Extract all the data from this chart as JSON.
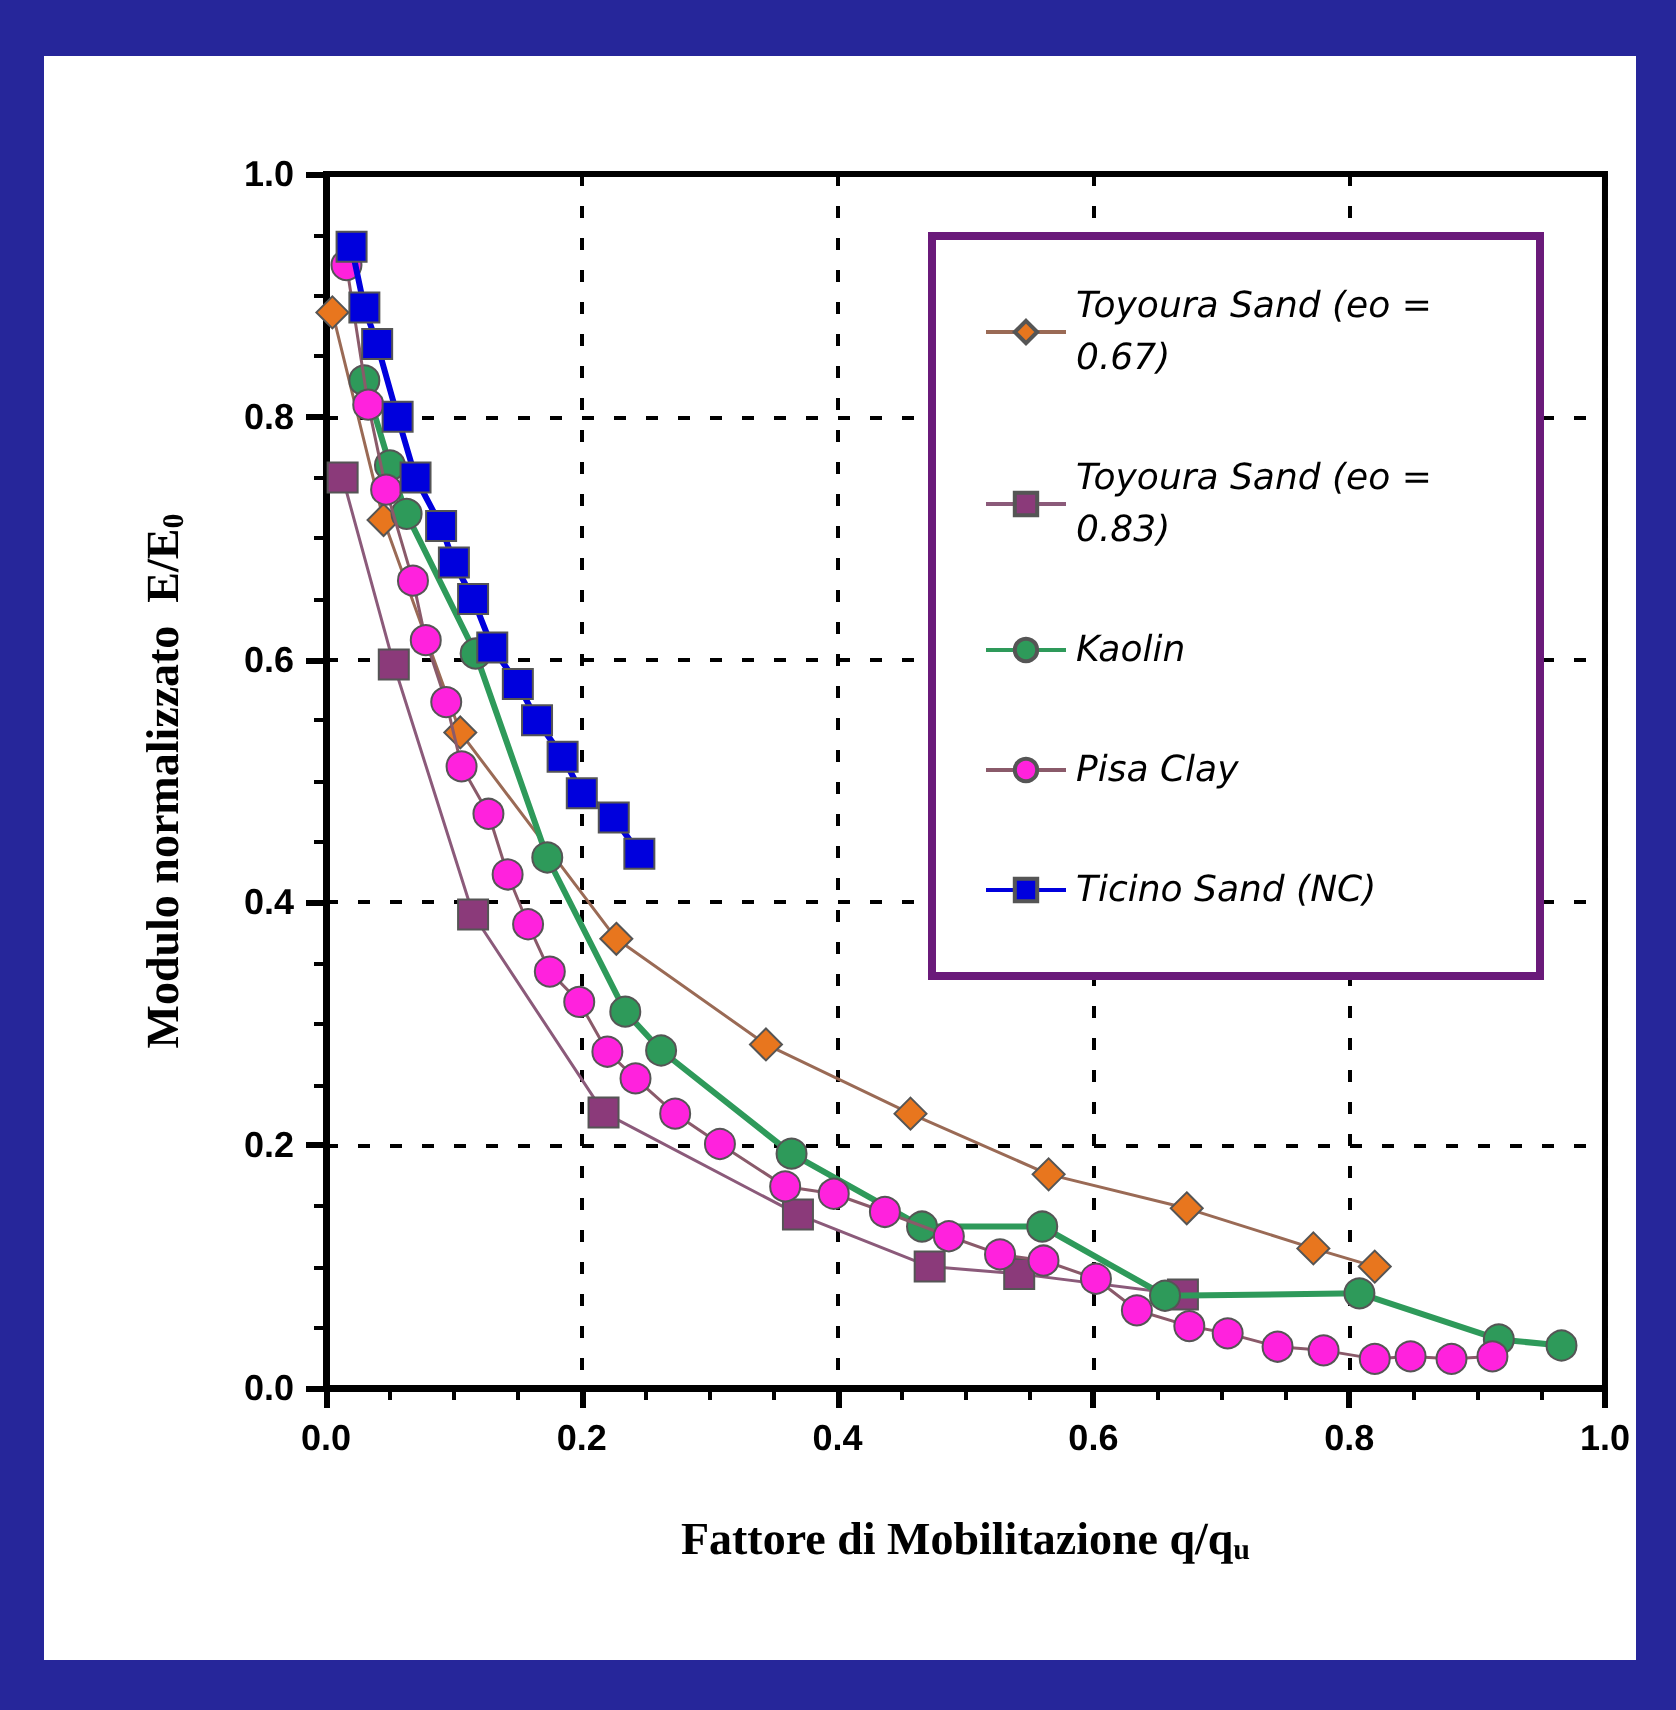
{
  "chart_data": {
    "type": "line",
    "xlabel": "Fattore di Mobilitazione q/q$_{u}$",
    "ylabel": "Modulo normalizzato  E/E$_{0}$",
    "xlim": [
      0,
      1
    ],
    "xticks": [
      {
        "value": 0,
        "label": "0.0"
      },
      0.2,
      0.4,
      0.6,
      0.8,
      {
        "value": 1,
        "label": "1.0"
      }
    ],
    "ylim": [
      0,
      1
    ],
    "yticks": [
      {
        "value": 0,
        "label": "0.0"
      },
      0.2,
      0.4,
      0.6,
      0.8,
      {
        "value": 1,
        "label": "1.0"
      }
    ],
    "grid": true,
    "legend": "top right",
    "series": [
      {
        "name": "Toyoura Sand (eo = 0.67)",
        "color": "#e8761e",
        "marker": "diamond",
        "x": [
          0.005,
          0.045,
          0.105,
          0.227,
          0.344,
          0.457,
          0.565,
          0.673,
          0.772,
          0.82
        ],
        "values": [
          0.886,
          0.715,
          0.54,
          0.37,
          0.283,
          0.226,
          0.176,
          0.148,
          0.115,
          0.1
        ]
      },
      {
        "name": "Toyoura Sand (eo = 0.83)",
        "color": "#8b3a7a",
        "marker": "square",
        "x": [
          0.013,
          0.053,
          0.115,
          0.217,
          0.369,
          0.472,
          0.542,
          0.67
        ],
        "values": [
          0.75,
          0.596,
          0.39,
          0.227,
          0.143,
          0.1,
          0.094,
          0.077
        ]
      },
      {
        "name": "Kaolin",
        "color": "#2e9a5a",
        "marker": "circle",
        "x": [
          0.03,
          0.05,
          0.063,
          0.117,
          0.173,
          0.234,
          0.262,
          0.364,
          0.466,
          0.56,
          0.656,
          0.808,
          0.917,
          0.966
        ],
        "values": [
          0.83,
          0.76,
          0.72,
          0.605,
          0.437,
          0.31,
          0.278,
          0.193,
          0.133,
          0.133,
          0.076,
          0.078,
          0.04,
          0.035
        ]
      },
      {
        "name": "Pisa Clay",
        "color": "#ff22dd",
        "marker": "circle",
        "x": [
          0.016,
          0.033,
          0.047,
          0.068,
          0.078,
          0.094,
          0.106,
          0.127,
          0.142,
          0.158,
          0.175,
          0.198,
          0.22,
          0.242,
          0.273,
          0.308,
          0.359,
          0.397,
          0.437,
          0.487,
          0.527,
          0.561,
          0.602,
          0.634,
          0.675,
          0.705,
          0.744,
          0.78,
          0.82,
          0.848,
          0.88,
          0.912
        ],
        "values": [
          0.925,
          0.81,
          0.74,
          0.665,
          0.616,
          0.565,
          0.512,
          0.473,
          0.423,
          0.382,
          0.343,
          0.318,
          0.277,
          0.255,
          0.226,
          0.201,
          0.166,
          0.16,
          0.145,
          0.125,
          0.11,
          0.105,
          0.09,
          0.064,
          0.051,
          0.045,
          0.034,
          0.031,
          0.024,
          0.026,
          0.024,
          0.026
        ]
      },
      {
        "name": "Ticino Sand (NC)",
        "color": "#0000dd",
        "marker": "square",
        "x": [
          0.02,
          0.03,
          0.04,
          0.056,
          0.07,
          0.09,
          0.1,
          0.115,
          0.13,
          0.15,
          0.165,
          0.185,
          0.2,
          0.225,
          0.245
        ],
        "values": [
          0.94,
          0.89,
          0.86,
          0.8,
          0.75,
          0.71,
          0.68,
          0.65,
          0.61,
          0.58,
          0.55,
          0.52,
          0.49,
          0.47,
          0.44
        ]
      }
    ]
  }
}
